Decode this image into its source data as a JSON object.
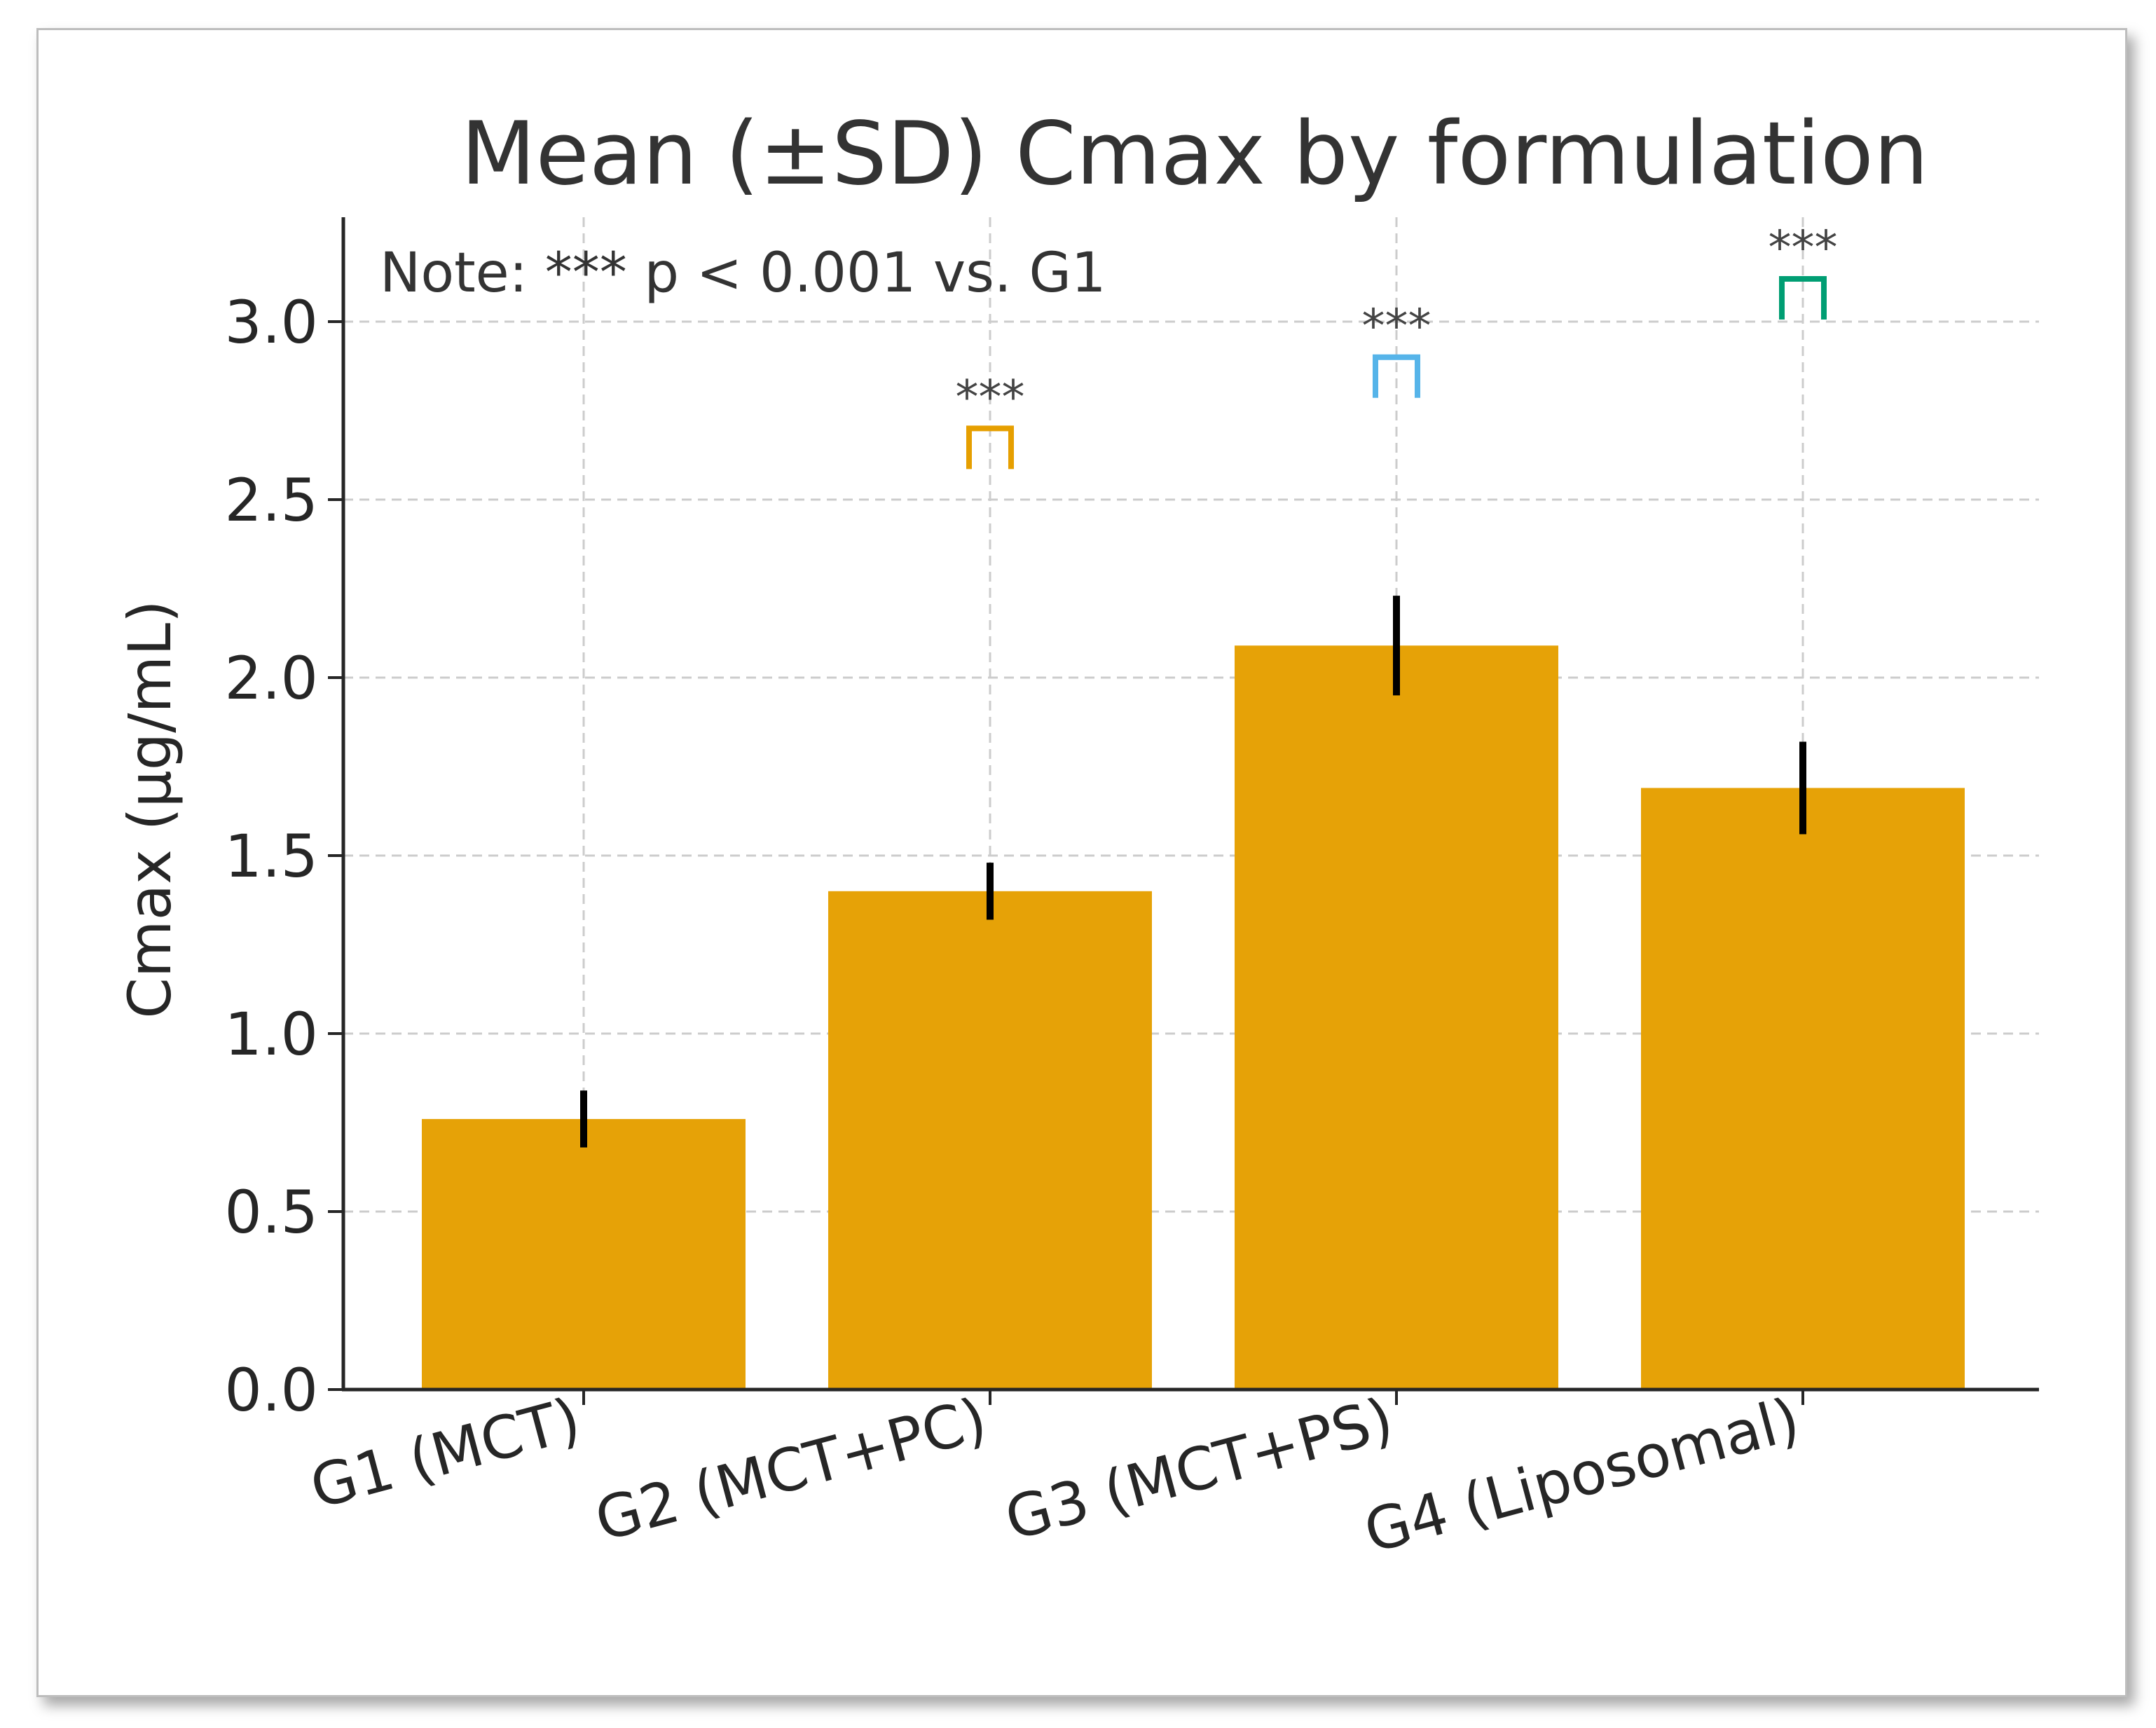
{
  "chart_data": {
    "type": "bar",
    "title": "Mean (±SD) Cmax by formulation",
    "xlabel": "",
    "ylabel": "Cmax (µg/mL)",
    "categories": [
      "G1 (MCT)",
      "G2 (MCT+PC)",
      "G3 (MCT+PS)",
      "G4 (Liposomal)"
    ],
    "values": [
      0.76,
      1.4,
      2.09,
      1.69
    ],
    "errors": [
      0.08,
      0.08,
      0.14,
      0.13
    ],
    "ylim": [
      0,
      3.28
    ],
    "yticks": [
      0.0,
      0.5,
      1.0,
      1.5,
      2.0,
      2.5,
      3.0
    ],
    "ytick_labels": [
      "0.0",
      "0.5",
      "1.0",
      "1.5",
      "2.0",
      "2.5",
      "3.0"
    ],
    "grid": true,
    "bar_color": "#E6A207",
    "note": "Note: *** p < 0.001 vs. G1",
    "significance": [
      {
        "category": "G2 (MCT+PC)",
        "label": "***",
        "y": 2.7,
        "color": "#E69F00"
      },
      {
        "category": "G3 (MCT+PS)",
        "label": "***",
        "y": 2.9,
        "color": "#56B4E9"
      },
      {
        "category": "G4 (Liposomal)",
        "label": "***",
        "y": 3.12,
        "color": "#009E73"
      }
    ]
  }
}
